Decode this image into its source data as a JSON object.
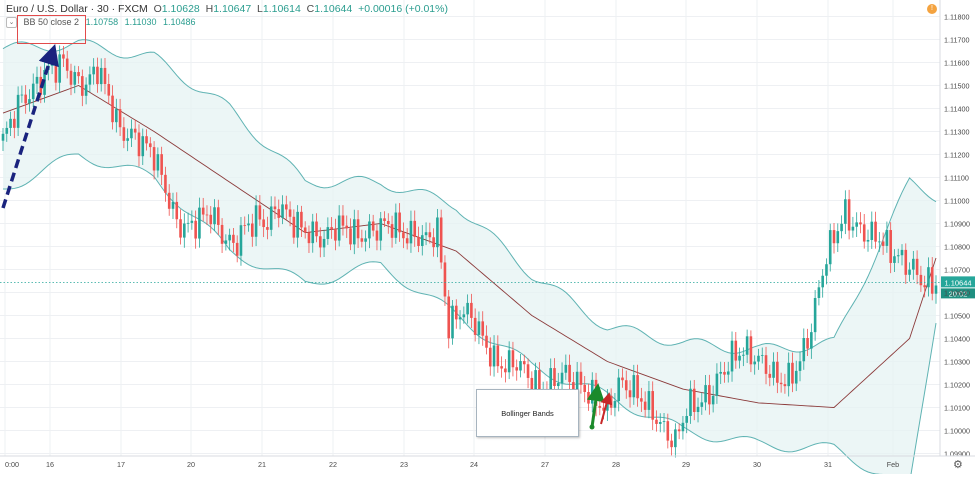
{
  "header": {
    "symbol": "Euro / U.S. Dollar · 30 · FXCM",
    "o_label": "O",
    "o_value": "1.10628",
    "h_label": "H",
    "h_value": "1.10647",
    "l_label": "L",
    "l_value": "1.10614",
    "c_label": "C",
    "c_value": "1.10644",
    "change": "+0.00016 (+0.01%)"
  },
  "indicator": {
    "caret": "⌄",
    "name": "BB 50 close 2",
    "basis": "1.10758",
    "upper": "1.11030",
    "lower": "1.10486"
  },
  "annotation": {
    "text": "Bollinger Bands"
  },
  "badges": {
    "alert": "!",
    "price_label": "1.10644",
    "timer_label": "20:02",
    "settings_icon": "gear-icon"
  },
  "colors": {
    "up": "#26a69a",
    "down": "#ef5350",
    "band": "#5fb3b3",
    "band_fill": "#e6f3f3",
    "basis": "#8b3a3a",
    "price_line": "#26a69a",
    "arrow_navy": "#1a237e",
    "arrow_green": "#1b8a2b",
    "arrow_red": "#c62828"
  },
  "chart_data": {
    "type": "candlestick",
    "title": "Euro / U.S. Dollar · 30 · FXCM",
    "ylim": [
      1.0985,
      1.1185
    ],
    "y_ticks": [
      "1.11800",
      "1.11700",
      "1.11600",
      "1.11500",
      "1.11400",
      "1.11300",
      "1.11200",
      "1.11100",
      "1.11000",
      "1.10900",
      "1.10800",
      "1.10700",
      "1.10600",
      "1.10500",
      "1.10400",
      "1.10300",
      "1.10200",
      "1.10100",
      "1.10000",
      "1.09900"
    ],
    "x_ticks": [
      "0:00",
      "16",
      "17",
      "20",
      "21",
      "22",
      "23",
      "24",
      "27",
      "28",
      "29",
      "30",
      "31",
      "Feb"
    ],
    "last_price": 1.10644,
    "series_keypoints": [
      {
        "name": "price",
        "x": [
          0,
          4,
          8,
          12,
          16,
          19,
          22,
          25,
          28,
          31,
          34,
          37,
          40,
          43,
          46,
          49,
          52,
          55,
          58,
          61,
          64,
          67,
          70,
          73,
          76,
          79,
          82,
          85,
          88,
          91,
          94,
          97,
          100,
          103,
          106,
          109,
          112,
          115,
          118,
          121,
          124,
          127,
          130,
          133,
          136,
          139,
          142,
          145,
          148,
          151,
          154,
          157,
          160,
          163,
          166,
          169,
          172,
          175,
          178,
          181,
          184,
          187,
          190,
          193,
          196,
          199,
          202,
          205,
          208,
          211,
          214,
          217,
          220,
          223,
          226,
          229,
          232,
          235,
          238,
          241,
          244,
          247
        ],
        "y": [
          1.1126,
          1.1142,
          1.1148,
          1.1157,
          1.116,
          1.1152,
          1.115,
          1.1158,
          1.1145,
          1.113,
          1.1128,
          1.1125,
          1.112,
          1.1105,
          1.109,
          1.1088,
          1.1092,
          1.1095,
          1.1085,
          1.108,
          1.1088,
          1.1092,
          1.109,
          1.1098,
          1.1092,
          1.1088,
          1.1085,
          1.1083,
          1.1089,
          1.1088,
          1.1084,
          1.1086,
          1.1089,
          1.109,
          1.1085,
          1.1085,
          1.1083,
          1.1087,
          1.1045,
          1.1052,
          1.105,
          1.104,
          1.103,
          1.1028,
          1.103,
          1.1024,
          1.1018,
          1.102,
          1.1025,
          1.1022,
          1.1018,
          1.1013,
          1.1009,
          1.102,
          1.1019,
          1.1014,
          1.1008,
          1.1,
          1.0995,
          1.101,
          1.1012,
          1.1015,
          1.1024,
          1.1032,
          1.1035,
          1.1032,
          1.1028,
          1.1022,
          1.1022,
          1.103,
          1.1045,
          1.107,
          1.1085,
          1.1094,
          1.1088,
          1.1085,
          1.1084,
          1.1078,
          1.1074,
          1.107,
          1.1064,
          1.1064
        ]
      },
      {
        "name": "upper",
        "x": [
          0,
          20,
          40,
          60,
          80,
          100,
          120,
          140,
          160,
          180,
          200,
          220,
          240,
          247
        ],
        "y": [
          1.1166,
          1.1168,
          1.1162,
          1.114,
          1.1108,
          1.1108,
          1.1098,
          1.1068,
          1.1045,
          1.1038,
          1.1035,
          1.1038,
          1.1108,
          1.1102
        ]
      },
      {
        "name": "basis",
        "x": [
          0,
          20,
          40,
          60,
          80,
          100,
          120,
          140,
          160,
          180,
          200,
          220,
          240,
          247
        ],
        "y": [
          1.1138,
          1.115,
          1.113,
          1.1108,
          1.1086,
          1.109,
          1.1078,
          1.105,
          1.103,
          1.1018,
          1.1012,
          1.101,
          1.104,
          1.1075
        ]
      },
      {
        "name": "lower",
        "x": [
          0,
          20,
          40,
          60,
          80,
          100,
          120,
          140,
          160,
          180,
          200,
          220,
          240,
          247
        ],
        "y": [
          1.1105,
          1.112,
          1.111,
          1.1078,
          1.1064,
          1.1072,
          1.105,
          1.1028,
          1.1015,
          1.1,
          1.0994,
          1.0992,
          1.0975,
          1.1049
        ]
      }
    ]
  }
}
